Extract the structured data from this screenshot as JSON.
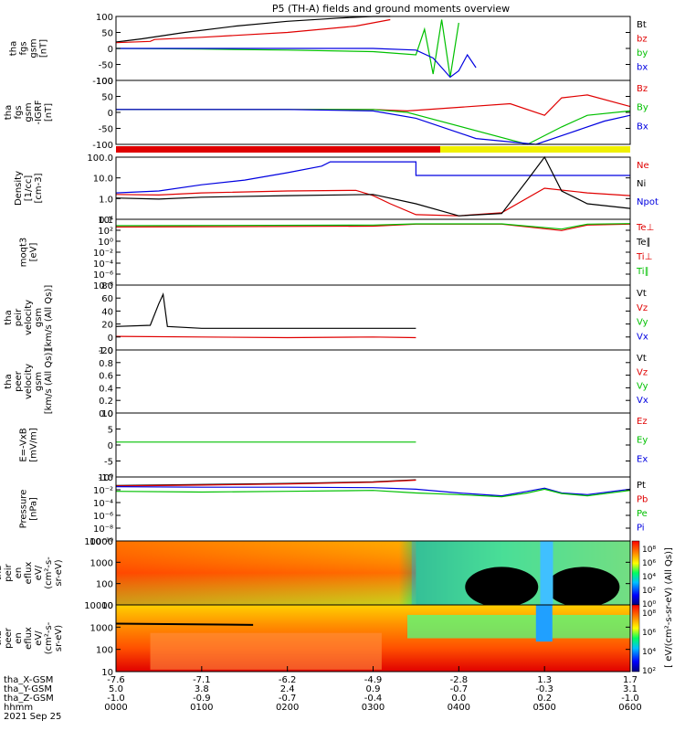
{
  "title": "P5 (TH-A) fields and ground moments overview",
  "date": "2021 Sep 25",
  "colors": {
    "black": "#000000",
    "red": "#e00000",
    "green": "#00c000",
    "blue": "#0000e0",
    "yellow": "#f0f000"
  },
  "status_bar": [
    {
      "state": "red",
      "start": "0000",
      "end": "0347"
    },
    {
      "state": "yellow",
      "start": "0347",
      "end": "0600"
    }
  ],
  "chart_data": [
    {
      "type": "line",
      "id": "fgs",
      "ylabel": [
        "tha",
        "fgs",
        "gsm",
        "[nT]"
      ],
      "yticks": [
        "100",
        "50",
        "0",
        "-50",
        "-100"
      ],
      "ylim": [
        -100,
        100
      ],
      "legend": [
        {
          "name": "Bt",
          "color": "black"
        },
        {
          "name": "bz",
          "color": "red"
        },
        {
          "name": "by",
          "color": "green"
        },
        {
          "name": "bx",
          "color": "blue"
        }
      ],
      "series": [
        {
          "name": "Bt",
          "x": [
            0,
            0.3,
            0.8,
            1.4,
            2.0,
            2.6,
            3.0,
            3.2
          ],
          "y": [
            20,
            30,
            50,
            70,
            85,
            95,
            110,
            120
          ]
        },
        {
          "name": "bz",
          "x": [
            0,
            0.4,
            0.45,
            1.0,
            2.0,
            2.8,
            3.2
          ],
          "y": [
            18,
            22,
            28,
            35,
            50,
            70,
            90
          ]
        },
        {
          "name": "by",
          "x": [
            0,
            1,
            2,
            3,
            3.5,
            3.6,
            3.7,
            3.8,
            3.9,
            4.0
          ],
          "y": [
            0,
            -2,
            -5,
            -10,
            -20,
            60,
            -80,
            90,
            -90,
            80
          ]
        },
        {
          "name": "bx",
          "x": [
            0,
            1,
            2,
            3,
            3.5,
            3.7,
            3.8,
            3.9,
            4.0,
            4.1,
            4.2
          ],
          "y": [
            0,
            0,
            0,
            0,
            -5,
            -30,
            -60,
            -90,
            -70,
            -20,
            -60
          ]
        }
      ]
    },
    {
      "type": "line",
      "id": "fgs_bg",
      "ylabel": [
        "tha",
        "fgs",
        "gsm",
        "-IGRF",
        "[nT]"
      ],
      "yticks": [
        "100",
        "50",
        "0",
        "-50",
        "-100"
      ],
      "ylim": [
        -120,
        100
      ],
      "legend": [
        {
          "name": "Bz",
          "color": "red"
        },
        {
          "name": "By",
          "color": "green"
        },
        {
          "name": "Bx",
          "color": "blue"
        }
      ],
      "series": [
        {
          "name": "Bz",
          "x": [
            0,
            1,
            2,
            3,
            3.4,
            4.6,
            5.0,
            5.2,
            5.5,
            6.0
          ],
          "y": [
            0,
            0,
            0,
            0,
            -5,
            20,
            -20,
            40,
            50,
            10
          ]
        },
        {
          "name": "By",
          "x": [
            0,
            1,
            2,
            3,
            3.4,
            4.8,
            5.2,
            5.5,
            6.0
          ],
          "y": [
            0,
            0,
            0,
            0,
            -10,
            -120,
            -60,
            -20,
            -5
          ]
        },
        {
          "name": "Bx",
          "x": [
            0,
            1,
            2,
            3,
            3.5,
            4.2,
            4.9,
            5.3,
            5.7,
            6.0
          ],
          "y": [
            0,
            0,
            0,
            -5,
            -30,
            -100,
            -120,
            -80,
            -40,
            -20
          ]
        }
      ]
    },
    {
      "type": "line",
      "id": "density",
      "scale": "log",
      "ylabel": [
        "Density",
        "[1/cc]",
        "[cm-3]"
      ],
      "yticks": [
        "100.0",
        "10.0",
        "1.0",
        "0.1"
      ],
      "ylim": [
        0.03,
        300
      ],
      "legend": [
        {
          "name": "Ne",
          "color": "red"
        },
        {
          "name": "Ni",
          "color": "black"
        },
        {
          "name": "Npot",
          "color": "blue"
        }
      ],
      "series": [
        {
          "name": "Npot",
          "x": [
            0,
            0.5,
            1.0,
            1.5,
            2.0,
            2.4,
            2.5,
            3.5,
            3.5,
            6.0
          ],
          "y": [
            1.5,
            2,
            5,
            10,
            30,
            80,
            150,
            150,
            20,
            20
          ]
        },
        {
          "name": "Ne",
          "x": [
            0,
            0.5,
            1.0,
            2.0,
            2.8,
            3.0,
            3.2,
            3.5,
            4.0,
            4.5,
            5.0,
            5.5,
            6.0
          ],
          "y": [
            1.2,
            1.1,
            1.5,
            2.0,
            2.2,
            1.0,
            0.3,
            0.06,
            0.05,
            0.08,
            3.0,
            1.5,
            1.0
          ]
        },
        {
          "name": "Ni",
          "x": [
            0,
            0.5,
            1.0,
            2.0,
            3.0,
            3.5,
            4.0,
            4.5,
            4.8,
            5.0,
            5.2,
            5.5,
            6.0
          ],
          "y": [
            0.7,
            0.6,
            0.8,
            1.0,
            1.2,
            0.3,
            0.05,
            0.07,
            10,
            300,
            2,
            0.3,
            0.15
          ]
        }
      ]
    },
    {
      "type": "line",
      "id": "temp",
      "scale": "log",
      "ylabel": [
        "moqt3",
        "[eV]"
      ],
      "yticks": [
        "10⁴",
        "10²",
        "10⁰",
        "10⁻²",
        "10⁻⁴",
        "10⁻⁶",
        "10⁻⁸"
      ],
      "ylim": [
        1e-09,
        30000.0
      ],
      "legend": [
        {
          "name": "Te⊥",
          "color": "red"
        },
        {
          "name": "Te∥",
          "color": "black"
        },
        {
          "name": "Ti⊥",
          "color": "red"
        },
        {
          "name": "Ti∥",
          "color": "green"
        }
      ],
      "series": [
        {
          "name": "Te⊥",
          "x": [
            0,
            3,
            3.5,
            4.5,
            5.2,
            5.5,
            6.0
          ],
          "y": [
            800,
            1200,
            3000,
            3000,
            150,
            2000,
            3000
          ]
        },
        {
          "name": "Ti∥",
          "x": [
            0,
            3,
            3.5,
            4.5,
            5.2,
            5.5,
            6.0
          ],
          "y": [
            1500,
            2000,
            3500,
            3500,
            300,
            3000,
            4000
          ]
        }
      ]
    },
    {
      "type": "line",
      "id": "peir_vel",
      "ylabel": [
        "tha",
        "peir",
        "velocity",
        "gsm",
        "[km/s (All Qs)]"
      ],
      "yticks": [
        "80",
        "60",
        "40",
        "20",
        "0",
        "-20"
      ],
      "ylim": [
        -20,
        85
      ],
      "legend": [
        {
          "name": "Vt",
          "color": "black"
        },
        {
          "name": "Vz",
          "color": "red"
        },
        {
          "name": "Vy",
          "color": "green"
        },
        {
          "name": "Vx",
          "color": "blue"
        }
      ],
      "series": [
        {
          "name": "Vt",
          "x": [
            0,
            0.4,
            0.5,
            0.55,
            0.6,
            1.0,
            2.0,
            3.0,
            3.5
          ],
          "y": [
            18,
            20,
            55,
            70,
            18,
            15,
            15,
            15,
            15
          ]
        },
        {
          "name": "Vz",
          "x": [
            0,
            1,
            2,
            3,
            3.5
          ],
          "y": [
            2,
            1,
            0,
            1,
            0
          ]
        }
      ]
    },
    {
      "type": "line",
      "id": "peer_vel",
      "ylabel": [
        "tha",
        "peer",
        "velocity",
        "gsm",
        "[km/s (All Qs)]"
      ],
      "yticks": [
        "1.0",
        "0.8",
        "0.6",
        "0.4",
        "0.2",
        "0.0"
      ],
      "ylim": [
        0,
        1
      ],
      "legend": [
        {
          "name": "Vt",
          "color": "black"
        },
        {
          "name": "Vz",
          "color": "red"
        },
        {
          "name": "Vy",
          "color": "green"
        },
        {
          "name": "Vx",
          "color": "blue"
        }
      ],
      "series": []
    },
    {
      "type": "line",
      "id": "efield",
      "ylabel": [
        "E=-VxB",
        "[mV/m]"
      ],
      "yticks": [
        "10",
        "5",
        "0",
        "-5",
        "-10"
      ],
      "ylim": [
        -12,
        10
      ],
      "legend": [
        {
          "name": "Ez",
          "color": "red"
        },
        {
          "name": "Ey",
          "color": "green"
        },
        {
          "name": "Ex",
          "color": "blue"
        }
      ],
      "series": [
        {
          "name": "Ey",
          "x": [
            0,
            1,
            2,
            2.8,
            3.2,
            3.5
          ],
          "y": [
            0,
            0,
            0,
            0,
            0,
            0
          ]
        }
      ]
    },
    {
      "type": "line",
      "id": "pressure",
      "scale": "log",
      "ylabel": [
        "Pressure",
        "[nPa]"
      ],
      "yticks": [
        "10⁰",
        "10⁻²",
        "10⁻⁴",
        "10⁻⁶",
        "10⁻⁸",
        "10⁻¹⁰"
      ],
      "ylim": [
        1e-11,
        10
      ],
      "legend": [
        {
          "name": "Pt",
          "color": "black"
        },
        {
          "name": "Pb",
          "color": "red"
        },
        {
          "name": "Pe",
          "color": "green"
        },
        {
          "name": "Pi",
          "color": "blue"
        }
      ],
      "series": [
        {
          "name": "Pt",
          "x": [
            0,
            1,
            2,
            3,
            3.5
          ],
          "y": [
            0.25,
            0.4,
            0.6,
            1.2,
            3
          ]
        },
        {
          "name": "Pb",
          "x": [
            0,
            1,
            2,
            3,
            3.5
          ],
          "y": [
            0.2,
            0.3,
            0.5,
            1.0,
            2.5
          ]
        },
        {
          "name": "Pi",
          "x": [
            0,
            1,
            2,
            3,
            3.5,
            4.0,
            4.5,
            4.8,
            5.0,
            5.2,
            5.5,
            6.0
          ],
          "y": [
            0.15,
            0.12,
            0.12,
            0.1,
            0.05,
            0.01,
            0.003,
            0.02,
            0.08,
            0.01,
            0.005,
            0.05
          ]
        },
        {
          "name": "Pe",
          "x": [
            0,
            1,
            2,
            3,
            3.5,
            4.0,
            4.5,
            4.8,
            5.0,
            5.2,
            5.5,
            6.0
          ],
          "y": [
            0.02,
            0.015,
            0.02,
            0.03,
            0.01,
            0.005,
            0.002,
            0.01,
            0.05,
            0.008,
            0.003,
            0.03
          ]
        }
      ]
    },
    {
      "type": "heatmap",
      "id": "peir_eflux",
      "ylabel": [
        "tha",
        "peir",
        "en",
        "eflux",
        "eV/",
        "(cm²-s-",
        "sr-eV)"
      ],
      "yticks": [
        "10000",
        "1000",
        "100",
        "10"
      ],
      "colorbar": {
        "label": "[eV/(cm²-s-sr-eV)]",
        "ticks": [
          "10⁸",
          "10⁶",
          "10⁴",
          "10²",
          "10⁰"
        ]
      }
    },
    {
      "type": "heatmap",
      "id": "peer_eflux",
      "ylabel": [
        "tha",
        "peer",
        "en",
        "eflux",
        "eV/",
        "(cm²-s-",
        "sr-eV)"
      ],
      "yticks": [
        "10000",
        "1000",
        "100",
        "10"
      ],
      "colorbar": {
        "label": "[eV/(cm²-s-sr-eV)]",
        "ticks": [
          "10⁸",
          "10⁶",
          "10⁴",
          "10²"
        ]
      }
    }
  ],
  "colorbar_main_label": "[eV/(cm²-s-sr-eV)]",
  "colorbar_side_label": "[ eV/(cm²-s-sr-eV) (All Qs)]",
  "xaxis": {
    "rows": [
      {
        "label": "tha_X-GSM",
        "values": [
          "-7.6",
          "-7.1",
          "-6.2",
          "-4.9",
          "-2.8",
          "1.3",
          "1.7"
        ]
      },
      {
        "label": "tha_Y-GSM",
        "values": [
          "5.0",
          "3.8",
          "2.4",
          "0.9",
          "-0.7",
          "-0.3",
          "3.1"
        ]
      },
      {
        "label": "tha_Z-GSM",
        "values": [
          "-1.0",
          "-0.9",
          "-0.7",
          "-0.4",
          "0.0",
          "0.2",
          "-1.0"
        ]
      },
      {
        "label": "hhmm",
        "values": [
          "0000",
          "0100",
          "0200",
          "0300",
          "0400",
          "0500",
          "0600"
        ]
      }
    ]
  }
}
